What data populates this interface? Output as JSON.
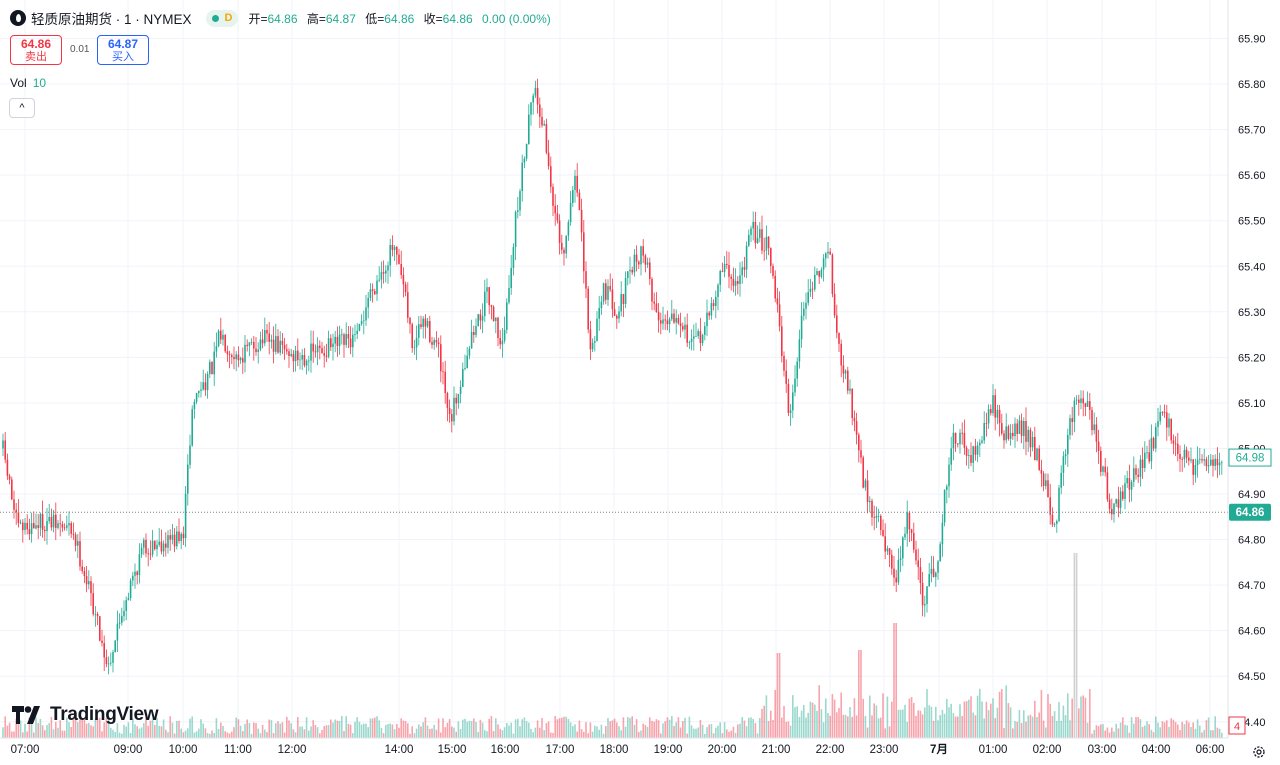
{
  "header": {
    "symbol_title": "轻质原油期货 · 1 · NYMEX",
    "interval_badge": "D",
    "open_label": "开=",
    "open": "64.86",
    "high_label": "高=",
    "high": "64.87",
    "low_label": "低=",
    "low": "64.86",
    "close_label": "收=",
    "close": "64.86",
    "change": "0.00 (0.00%)"
  },
  "trade": {
    "sell_price": "64.86",
    "sell_label": "卖出",
    "spread": "0.01",
    "buy_price": "64.87",
    "buy_label": "买入"
  },
  "volume_legend": {
    "label": "Vol",
    "value": "10"
  },
  "brand": "TradingView",
  "colors": {
    "up": "#22ab94",
    "down": "#f23645",
    "grid": "#f0f3fa",
    "axis_text": "#131722"
  },
  "chart_data": {
    "type": "candlestick",
    "ylim": [
      64.37,
      65.95
    ],
    "y_ticks": [
      65.9,
      65.8,
      65.7,
      65.6,
      65.5,
      65.4,
      65.3,
      65.2,
      65.1,
      65.0,
      64.9,
      64.8,
      64.7,
      64.6,
      64.5,
      64.4
    ],
    "x_ticks": [
      "07:00",
      "09:00",
      "10:00",
      "11:00",
      "12:00",
      "14:00",
      "15:00",
      "16:00",
      "17:00",
      "18:00",
      "19:00",
      "20:00",
      "21:00",
      "22:00",
      "23:00",
      "7月",
      "01:00",
      "02:00",
      "03:00",
      "04:00",
      "06:00"
    ],
    "x_tick_slots": [
      25,
      128,
      183,
      238,
      292,
      399,
      452,
      505,
      560,
      614,
      668,
      722,
      776,
      830,
      884,
      939,
      993,
      1047,
      1102,
      1156,
      1210
    ],
    "x_range": [
      0,
      1228
    ],
    "price_anchors": [
      [
        5,
        65.0
      ],
      [
        20,
        64.82
      ],
      [
        45,
        64.84
      ],
      [
        75,
        64.82
      ],
      [
        95,
        64.66
      ],
      [
        110,
        64.52
      ],
      [
        125,
        64.65
      ],
      [
        145,
        64.78
      ],
      [
        170,
        64.8
      ],
      [
        185,
        64.8
      ],
      [
        195,
        65.1
      ],
      [
        215,
        65.18
      ],
      [
        222,
        65.25
      ],
      [
        240,
        65.2
      ],
      [
        265,
        65.24
      ],
      [
        300,
        65.2
      ],
      [
        330,
        65.22
      ],
      [
        360,
        65.24
      ],
      [
        370,
        65.33
      ],
      [
        395,
        65.44
      ],
      [
        405,
        65.36
      ],
      [
        415,
        65.22
      ],
      [
        425,
        65.28
      ],
      [
        440,
        65.22
      ],
      [
        452,
        65.05
      ],
      [
        470,
        65.22
      ],
      [
        490,
        65.34
      ],
      [
        505,
        65.22
      ],
      [
        515,
        65.45
      ],
      [
        525,
        65.62
      ],
      [
        535,
        65.8
      ],
      [
        545,
        65.72
      ],
      [
        555,
        65.55
      ],
      [
        565,
        65.4
      ],
      [
        578,
        65.62
      ],
      [
        585,
        65.42
      ],
      [
        593,
        65.2
      ],
      [
        605,
        65.36
      ],
      [
        620,
        65.3
      ],
      [
        635,
        65.4
      ],
      [
        645,
        65.44
      ],
      [
        660,
        65.28
      ],
      [
        680,
        65.3
      ],
      [
        695,
        65.22
      ],
      [
        710,
        65.28
      ],
      [
        725,
        65.4
      ],
      [
        740,
        65.36
      ],
      [
        755,
        65.48
      ],
      [
        770,
        65.44
      ],
      [
        780,
        65.3
      ],
      [
        792,
        65.06
      ],
      [
        805,
        65.32
      ],
      [
        820,
        65.38
      ],
      [
        832,
        65.42
      ],
      [
        840,
        65.22
      ],
      [
        850,
        65.14
      ],
      [
        860,
        65.0
      ],
      [
        870,
        64.88
      ],
      [
        885,
        64.82
      ],
      [
        897,
        64.7
      ],
      [
        910,
        64.86
      ],
      [
        925,
        64.66
      ],
      [
        940,
        64.76
      ],
      [
        955,
        65.04
      ],
      [
        975,
        64.98
      ],
      [
        995,
        65.1
      ],
      [
        1010,
        65.02
      ],
      [
        1025,
        65.05
      ],
      [
        1040,
        64.98
      ],
      [
        1057,
        64.83
      ],
      [
        1065,
        64.96
      ],
      [
        1078,
        65.12
      ],
      [
        1090,
        65.1
      ],
      [
        1102,
        64.98
      ],
      [
        1115,
        64.86
      ],
      [
        1130,
        64.92
      ],
      [
        1150,
        64.98
      ],
      [
        1165,
        65.08
      ],
      [
        1180,
        65.0
      ],
      [
        1195,
        64.95
      ],
      [
        1208,
        64.96
      ],
      [
        1220,
        64.98
      ]
    ],
    "last_price_label": "64.98",
    "current_price_label": "64.86",
    "current_price": 64.86,
    "last_price": 64.98,
    "volume_label": "4",
    "grid": true
  }
}
